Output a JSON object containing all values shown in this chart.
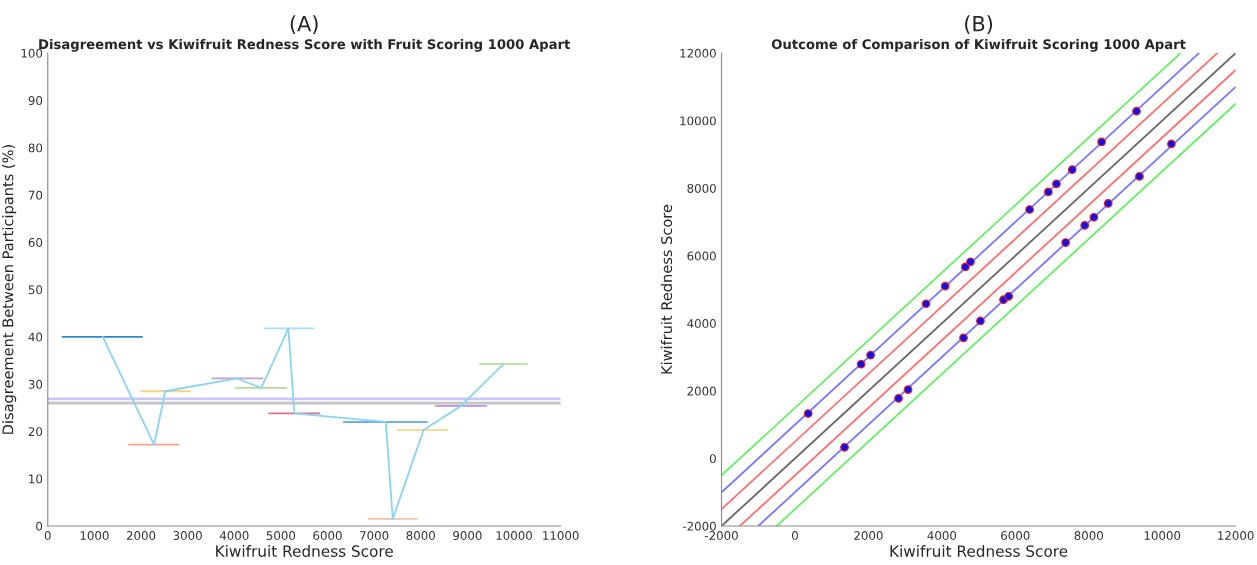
{
  "chart_data": [
    {
      "type": "line",
      "title": "(A)",
      "subtitle": "Disagreement vs Kiwifruit Redness Score with Fruit Scoring 1000 Apart",
      "xlabel": "Kiwifruit Redness Score",
      "ylabel": "Disagreement Between Participants (%)",
      "xlim": [
        0,
        11000
      ],
      "ylim": [
        0,
        100
      ],
      "xticks": [
        0,
        1000,
        2000,
        3000,
        4000,
        5000,
        6000,
        7000,
        8000,
        9000,
        10000,
        11000
      ],
      "yticks": [
        0,
        10,
        20,
        30,
        40,
        50,
        60,
        70,
        80,
        90,
        100
      ],
      "ref_lines": [
        {
          "axis": "y",
          "value": 26.9,
          "color": "#c8c8f8"
        },
        {
          "axis": "y",
          "value": 26.0,
          "color": "#c4c4c4"
        }
      ],
      "series": [
        {
          "type": "line",
          "color": "#2a8ad0",
          "x": [
            316,
            2022
          ],
          "values": [
            40,
            40
          ]
        },
        {
          "type": "line",
          "color": "#f0a890",
          "x": [
            1740,
            2800
          ],
          "values": [
            17.2,
            17.2
          ]
        },
        {
          "type": "line",
          "color": "#f5d48a",
          "x": [
            2000,
            3055
          ],
          "values": [
            28.5,
            28.5
          ]
        },
        {
          "type": "line",
          "color": "#c8a0d0",
          "x": [
            3530,
            4600
          ],
          "values": [
            31.2,
            31.2
          ]
        },
        {
          "type": "line",
          "color": "#b8d898",
          "x": [
            4040,
            5120
          ],
          "values": [
            29.2,
            29.2
          ]
        },
        {
          "type": "line",
          "color": "#a8e0f4",
          "x": [
            4650,
            5700
          ],
          "values": [
            41.8,
            41.8
          ]
        },
        {
          "type": "line",
          "color": "#d87088",
          "x": [
            4750,
            5830
          ],
          "values": [
            23.8,
            23.8
          ]
        },
        {
          "type": "line",
          "color": "#70b0e0",
          "x": [
            6350,
            8130
          ],
          "values": [
            22,
            22
          ]
        },
        {
          "type": "line",
          "color": "#f4c0a8",
          "x": [
            6880,
            7910
          ],
          "values": [
            1.5,
            1.5
          ]
        },
        {
          "type": "line",
          "color": "#f5dc9a",
          "x": [
            7500,
            8580
          ],
          "values": [
            20.3,
            20.3
          ]
        },
        {
          "type": "line",
          "color": "#c090d0",
          "x": [
            8320,
            9400
          ],
          "values": [
            25.4,
            25.4
          ]
        },
        {
          "type": "line",
          "color": "#c0e0a0",
          "x": [
            9270,
            10280
          ],
          "values": [
            34.3,
            34.3
          ]
        },
        {
          "type": "line",
          "color": "#8ad4f2",
          "x": [
            1180,
            2280,
            2520,
            4060,
            4580,
            5160,
            5290,
            7250,
            7400,
            8060,
            8860,
            9780
          ],
          "values": [
            40,
            17.2,
            28.5,
            31.2,
            29.2,
            41.8,
            23.8,
            22,
            1.5,
            20.3,
            25.4,
            34.3
          ]
        }
      ]
    },
    {
      "type": "line",
      "title": "(B)",
      "subtitle": "Outcome of Comparison of Kiwifruit Scoring 1000 Apart",
      "xlabel": "Kiwifruit Redness Score",
      "ylabel": "Kiwifruit Redness Score",
      "xlim": [
        -2000,
        12000
      ],
      "ylim": [
        -2000,
        12000
      ],
      "xticks": [
        -2000,
        0,
        2000,
        4000,
        6000,
        8000,
        10000,
        12000
      ],
      "yticks": [
        -2000,
        0,
        2000,
        4000,
        6000,
        8000,
        10000,
        12000
      ],
      "series": [
        {
          "type": "line",
          "color": "#66ee66",
          "x": [
            -2000,
            10500
          ],
          "values": [
            -500,
            12000
          ]
        },
        {
          "type": "line",
          "color": "#7777ff",
          "x": [
            -2000,
            11000
          ],
          "values": [
            -1000,
            12000
          ]
        },
        {
          "type": "line",
          "color": "#ff7070",
          "x": [
            -2000,
            11500
          ],
          "values": [
            -1500,
            12000
          ]
        },
        {
          "type": "line",
          "color": "#666666",
          "x": [
            -2000,
            12000
          ],
          "values": [
            -2000,
            12000
          ]
        },
        {
          "type": "line",
          "color": "#ff7070",
          "x": [
            -1500,
            12000
          ],
          "values": [
            -2000,
            11500
          ]
        },
        {
          "type": "line",
          "color": "#7777ff",
          "x": [
            -1000,
            12000
          ],
          "values": [
            -2000,
            11000
          ]
        },
        {
          "type": "line",
          "color": "#66ee66",
          "x": [
            -500,
            12000
          ],
          "values": [
            -2000,
            10500
          ]
        },
        {
          "type": "scatter",
          "color": "#1010ee",
          "marker": "circle",
          "x": [
            360,
            1800,
            2060,
            3570,
            4090,
            4640,
            4780,
            6390,
            6900,
            7120,
            7550,
            8350,
            9300,
            1350,
            2820,
            3080,
            4590,
            5050,
            5680,
            5820,
            7370,
            7890,
            8140,
            8530,
            9380,
            10250
          ],
          "values": [
            1330,
            2790,
            3060,
            4580,
            5100,
            5670,
            5820,
            7370,
            7890,
            8130,
            8550,
            9370,
            10280,
            330,
            1780,
            2040,
            3570,
            4070,
            4700,
            4800,
            6390,
            6900,
            7140,
            7550,
            8350,
            9310
          ]
        }
      ]
    }
  ]
}
